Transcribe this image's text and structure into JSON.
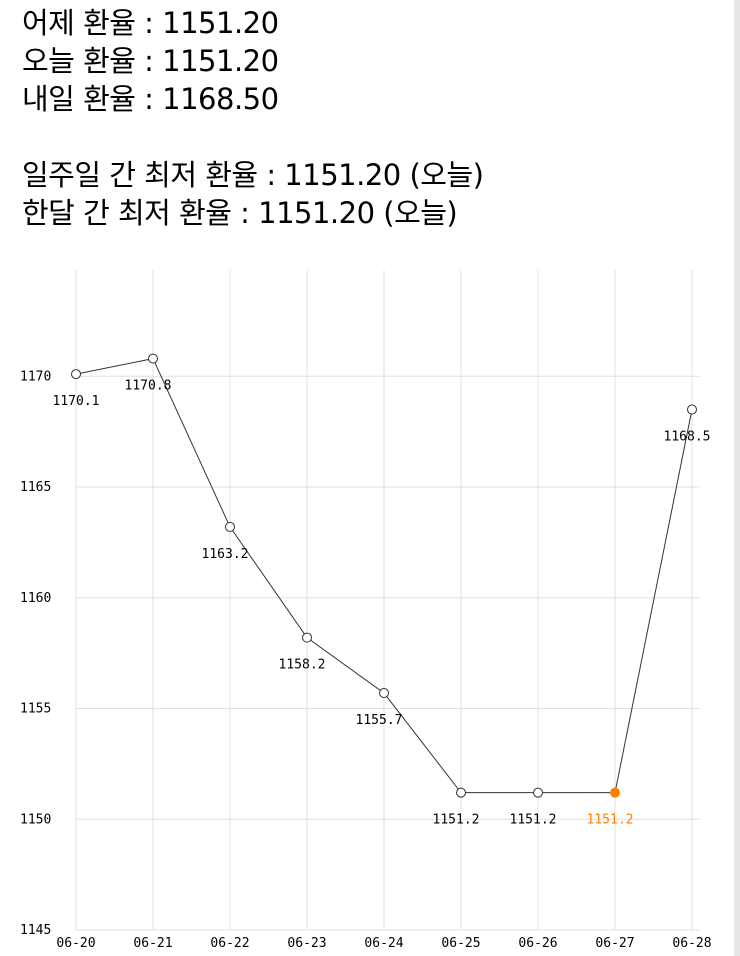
{
  "rates": {
    "yesterday": "어제 환율 : 1151.20",
    "today": "오늘 환율 : 1151.20",
    "tomorrow": "내일 환율 : 1168.50",
    "week_low": "일주일 간 최저 환율 : 1151.20 (오늘)",
    "month_low": "한달 간 최저 환율 : 1151.20 (오늘)"
  },
  "colors": {
    "line": "#333333",
    "highlight": "#ff7f00",
    "grid": "#e0e0e0"
  },
  "chart_data": {
    "type": "line",
    "categories": [
      "06-20",
      "06-21",
      "06-22",
      "06-23",
      "06-24",
      "06-25",
      "06-26",
      "06-27",
      "06-28"
    ],
    "values": [
      1170.1,
      1170.8,
      1163.2,
      1158.2,
      1155.7,
      1151.2,
      1151.2,
      1151.2,
      1168.5
    ],
    "data_labels": [
      "1170.1",
      "1170.8",
      "1163.2",
      "1158.2",
      "1155.7",
      "1151.2",
      "1151.2",
      "1151.2",
      "1168.5"
    ],
    "highlight_index": 7,
    "y_ticks": [
      1145,
      1150,
      1155,
      1160,
      1165,
      1170
    ],
    "ylim": [
      1145,
      1174.8
    ],
    "grid": true,
    "title": "",
    "xlabel": "",
    "ylabel": ""
  }
}
